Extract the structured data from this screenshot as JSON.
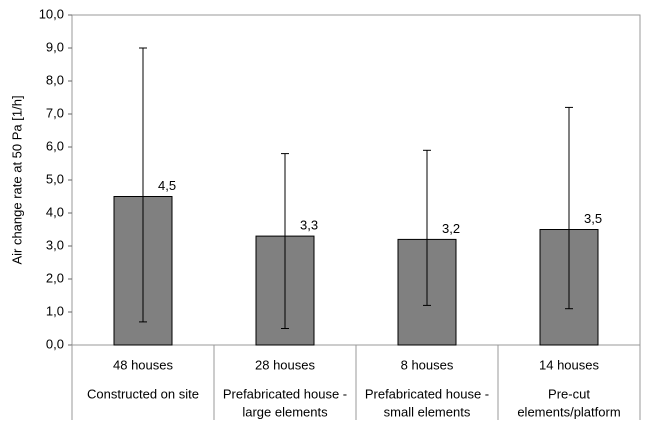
{
  "chart_data": {
    "type": "bar",
    "y_label": "Air change rate at 50 Pa [1/h]",
    "sample_sizes": [
      "48 houses",
      "28 houses",
      "8 houses",
      "14 houses"
    ],
    "categories": [
      [
        "Constructed on site"
      ],
      [
        "Prefabricated house -",
        "large elements"
      ],
      [
        "Prefabricated house -",
        "small elements"
      ],
      [
        "Pre-cut",
        "elements/platform"
      ]
    ],
    "values": [
      4.5,
      3.3,
      3.2,
      3.5
    ],
    "value_labels": [
      "4,5",
      "3,3",
      "3,2",
      "3,5"
    ],
    "min": [
      0.7,
      0.5,
      1.2,
      1.1
    ],
    "max": [
      9.0,
      5.8,
      5.9,
      7.2
    ],
    "color": "#808080",
    "ylim": [
      0,
      10
    ],
    "yticks": [
      {
        "value": 0,
        "label": "0,0"
      },
      {
        "value": 1,
        "label": "1,0"
      },
      {
        "value": 2,
        "label": "2,0"
      },
      {
        "value": 3,
        "label": "3,0"
      },
      {
        "value": 4,
        "label": "4,0"
      },
      {
        "value": 5,
        "label": "5,0"
      },
      {
        "value": 6,
        "label": "6,0"
      },
      {
        "value": 7,
        "label": "7,0"
      },
      {
        "value": 8,
        "label": "8,0"
      },
      {
        "value": 9,
        "label": "9,0"
      },
      {
        "value": 10,
        "label": "10,0"
      }
    ]
  }
}
